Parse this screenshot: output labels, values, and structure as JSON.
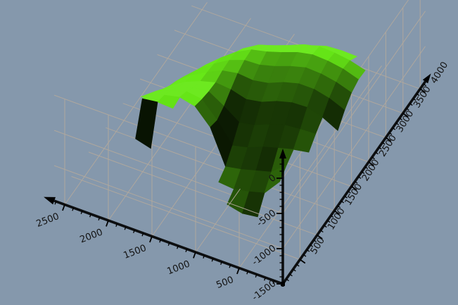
{
  "chart_data": {
    "type": "surface",
    "title": "",
    "legend": "none",
    "grid": "on",
    "background_color": "#8598ac",
    "grid_color": "#b2a89c",
    "axis_color": "#000000",
    "label_color": "#141414",
    "surface_top_color": "#5ec414",
    "surface_shadow_color": "#060905",
    "axes": {
      "x_left": {
        "tick_labels": [
          "500",
          "1000",
          "1500",
          "2000",
          "2500"
        ],
        "ticks": [
          500,
          1000,
          1500,
          2000,
          2500
        ],
        "minor_step": 100,
        "range": [
          0,
          2620
        ],
        "arrow": true
      },
      "y_right": {
        "tick_labels": [
          "500",
          "1000",
          "1500",
          "2000",
          "2500",
          "3000",
          "3500",
          "4000"
        ],
        "ticks": [
          500,
          1000,
          1500,
          2000,
          2500,
          3000,
          3500,
          4000
        ],
        "minor_step": 100,
        "range": [
          0,
          4150
        ],
        "arrow": true
      },
      "z_vertical": {
        "tick_labels": [
          "0",
          "-500",
          "-1000",
          "-1500"
        ],
        "ticks": [
          0,
          -500,
          -1000,
          -1500
        ],
        "minor_step": 100,
        "range": [
          -1500,
          280
        ],
        "arrow": true
      }
    },
    "surface": {
      "u_values": [
        0,
        175,
        350,
        525,
        700,
        875,
        1050,
        1225,
        1400,
        1575,
        1750,
        1925,
        2100
      ],
      "v_values": [
        600,
        800,
        1000,
        1200,
        1400,
        1600,
        1800,
        2000,
        2200,
        2400,
        2600
      ],
      "z_matrix": [
        [
          null,
          null,
          null,
          -1200,
          -1230,
          -1180,
          null,
          null,
          null,
          null,
          -780,
          -720,
          null
        ],
        [
          null,
          null,
          -760,
          -1000,
          -1060,
          -1100,
          -1080,
          null,
          null,
          -270,
          -260,
          -290,
          null
        ],
        [
          null,
          null,
          -660,
          -840,
          -900,
          -960,
          -1000,
          -520,
          -300,
          -250,
          -300,
          -360,
          null
        ],
        [
          null,
          -540,
          -580,
          -640,
          -700,
          -790,
          -840,
          -560,
          -340,
          -310,
          -370,
          -460,
          -620
        ],
        [
          null,
          -420,
          -430,
          -450,
          -520,
          -610,
          -650,
          -500,
          -370,
          -390,
          -460,
          -570,
          -760
        ],
        [
          -430,
          -320,
          -260,
          -270,
          -330,
          -420,
          -460,
          -400,
          -380,
          -440,
          -530,
          -660,
          -890
        ],
        [
          -280,
          -190,
          -140,
          -140,
          -200,
          -290,
          -330,
          -310,
          -350,
          -450,
          -570,
          -730,
          -960
        ],
        [
          -170,
          -100,
          -60,
          -50,
          -110,
          -190,
          -250,
          -260,
          -340,
          -470,
          -620,
          -810,
          null
        ],
        [
          -120,
          -50,
          -15,
          -5,
          -50,
          -130,
          -200,
          -250,
          -360,
          -520,
          -700,
          null,
          null
        ],
        [
          -130,
          -70,
          -40,
          -30,
          -80,
          -170,
          -250,
          -320,
          -450,
          -640,
          null,
          null,
          null
        ],
        [
          null,
          -150,
          -145,
          -160,
          -230,
          -330,
          -430,
          -540,
          null,
          null,
          null,
          null,
          null
        ]
      ]
    }
  }
}
